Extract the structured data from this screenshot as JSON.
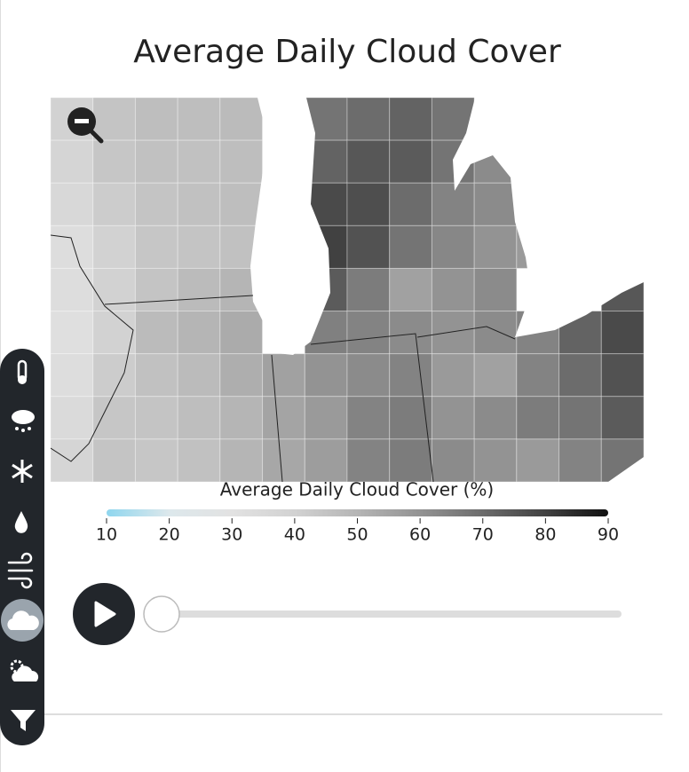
{
  "title": "Average Daily Cloud Cover",
  "map": {
    "legend_title": "Average Daily Cloud Cover (%)",
    "legend_ticks": [
      10,
      20,
      30,
      40,
      50,
      60,
      70,
      80,
      90
    ],
    "color_scale": [
      "#8fd6ee",
      "#dde8ec",
      "#e2e2e2",
      "#d2d2d2",
      "#b5b5b5",
      "#939393",
      "#6c6c6c",
      "#414141",
      "#111111"
    ],
    "cells": [
      [
        40,
        45,
        47,
        47,
        48,
        null,
        68,
        70,
        72,
        68,
        null,
        null,
        null,
        null
      ],
      [
        38,
        44,
        46,
        46,
        47,
        null,
        72,
        75,
        74,
        68,
        62,
        null,
        null,
        null
      ],
      [
        36,
        42,
        45,
        46,
        47,
        null,
        78,
        77,
        70,
        64,
        62,
        60,
        null,
        null
      ],
      [
        33,
        40,
        44,
        45,
        46,
        null,
        80,
        76,
        68,
        63,
        60,
        58,
        null,
        null
      ],
      [
        33,
        40,
        45,
        48,
        50,
        null,
        74,
        66,
        56,
        60,
        62,
        null,
        null,
        75
      ],
      [
        32,
        40,
        48,
        50,
        53,
        null,
        65,
        64,
        62,
        60,
        62,
        64,
        72,
        78
      ],
      [
        33,
        42,
        46,
        48,
        52,
        56,
        60,
        62,
        64,
        58,
        56,
        64,
        70,
        76
      ],
      [
        35,
        44,
        45,
        47,
        50,
        55,
        58,
        64,
        66,
        60,
        62,
        66,
        68,
        74
      ],
      [
        38,
        45,
        44,
        46,
        50,
        54,
        57,
        64,
        66,
        62,
        60,
        58,
        64,
        68
      ]
    ]
  }
}
